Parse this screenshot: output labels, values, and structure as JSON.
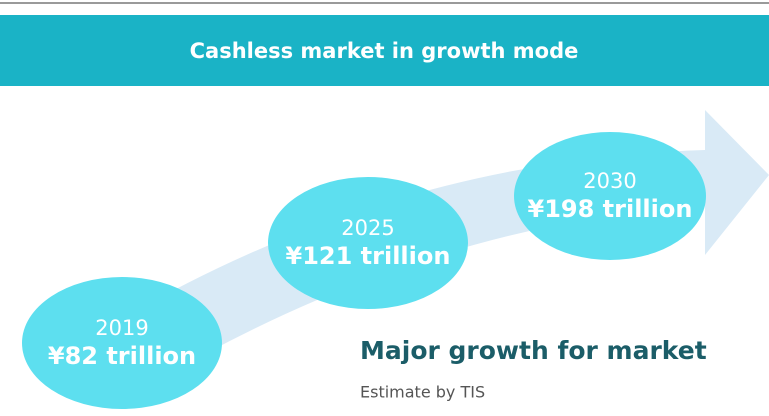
{
  "header": {
    "title": "Cashless market in growth mode"
  },
  "milestones": [
    {
      "year": "2019",
      "amount": "¥82 trillion"
    },
    {
      "year": "2025",
      "amount": "¥121 trillion"
    },
    {
      "year": "2030",
      "amount": "¥198 trillion"
    }
  ],
  "caption": {
    "title": "Major growth for market",
    "subtitle": "Estimate by TIS"
  }
}
